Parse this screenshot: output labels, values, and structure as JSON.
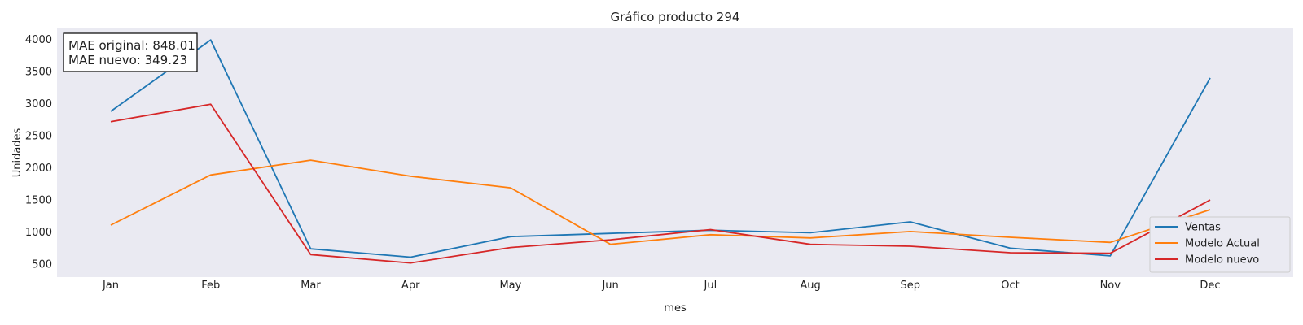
{
  "chart_data": {
    "type": "line",
    "title": "Gráfico producto 294",
    "xlabel": "mes",
    "ylabel": "Unidades",
    "categories": [
      "Jan",
      "Feb",
      "Mar",
      "Apr",
      "May",
      "Jun",
      "Jul",
      "Aug",
      "Sep",
      "Oct",
      "Nov",
      "Dec"
    ],
    "yticks": [
      500,
      1000,
      1500,
      2000,
      2500,
      3000,
      3500,
      4000
    ],
    "ylim": [
      300,
      4170
    ],
    "grid": false,
    "legend_position": "bottom-right",
    "background_color": "#eaeaf2",
    "series": [
      {
        "name": "Ventas",
        "color": "#1f77b4",
        "values": [
          2880,
          3990,
          740,
          610,
          930,
          980,
          1030,
          990,
          1160,
          750,
          630,
          3400
        ]
      },
      {
        "name": "Modelo Actual",
        "color": "#ff7f0e",
        "values": [
          1110,
          1890,
          2120,
          1870,
          1690,
          810,
          960,
          910,
          1010,
          920,
          840,
          1350
        ]
      },
      {
        "name": "Modelo nuevo",
        "color": "#d62728",
        "values": [
          2720,
          2990,
          650,
          520,
          760,
          880,
          1040,
          810,
          780,
          680,
          670,
          1500
        ]
      }
    ],
    "annotation": {
      "lines": [
        "MAE original: 848.01",
        "MAE nuevo: 349.23"
      ]
    }
  }
}
